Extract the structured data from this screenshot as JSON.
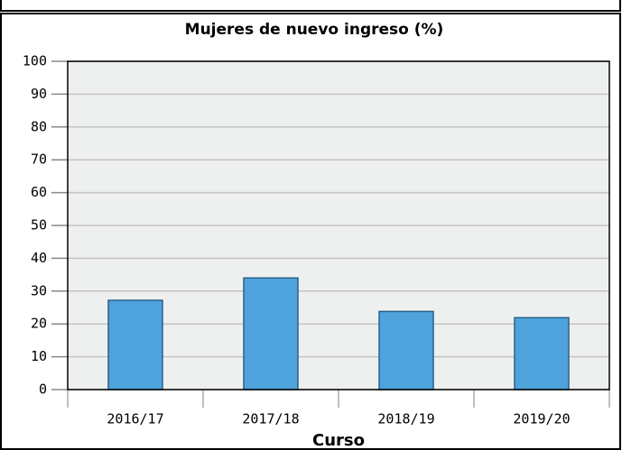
{
  "chart_data": {
    "type": "bar",
    "title": "Mujeres de nuevo ingreso (%)",
    "x_label": "Curso",
    "categories": [
      "2016/17",
      "2017/18",
      "2018/19",
      "2019/20"
    ],
    "values": [
      27.2,
      34,
      23.8,
      21.9
    ],
    "color": "#4fa3dc",
    "ylim": [
      0,
      100
    ],
    "yticks": [
      0,
      10,
      20,
      30,
      40,
      50,
      60,
      70,
      80,
      90,
      100
    ],
    "grid": true
  }
}
